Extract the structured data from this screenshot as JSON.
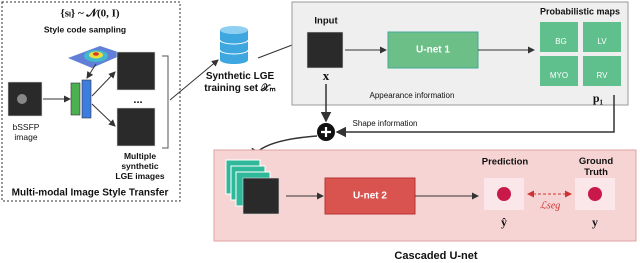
{
  "left_panel": {
    "formula": "{sₗ} ~ 𝒩(0, I)",
    "sampling_label": "Style code sampling",
    "input_label": [
      "bSSFP",
      "image"
    ],
    "ellipsis": "...",
    "output_label": [
      "Multiple",
      "synthetic",
      "LGE images"
    ],
    "title": "Multi-modal Image Style Transfer"
  },
  "dataset": {
    "label": [
      "Synthetic LGE",
      "training set 𝒳ₘ"
    ]
  },
  "stage1": {
    "input_label": "Input",
    "input_symbol": "x",
    "network": "U-net 1",
    "appearance_label": "Appearance  information",
    "maps_title": "Probabilistic maps",
    "maps": [
      "BG",
      "LV",
      "MYO",
      "RV"
    ],
    "maps_symbol": "p₁"
  },
  "shape_label": "Shape information",
  "stage2": {
    "network": "U-net 2",
    "prediction_label": "Prediction",
    "prediction_symbol": "ŷ",
    "ground_truth_label": [
      "Ground",
      "Truth"
    ],
    "ground_truth_symbol": "y",
    "loss": "ℒseg"
  },
  "caption": "Cascaded U-net"
}
